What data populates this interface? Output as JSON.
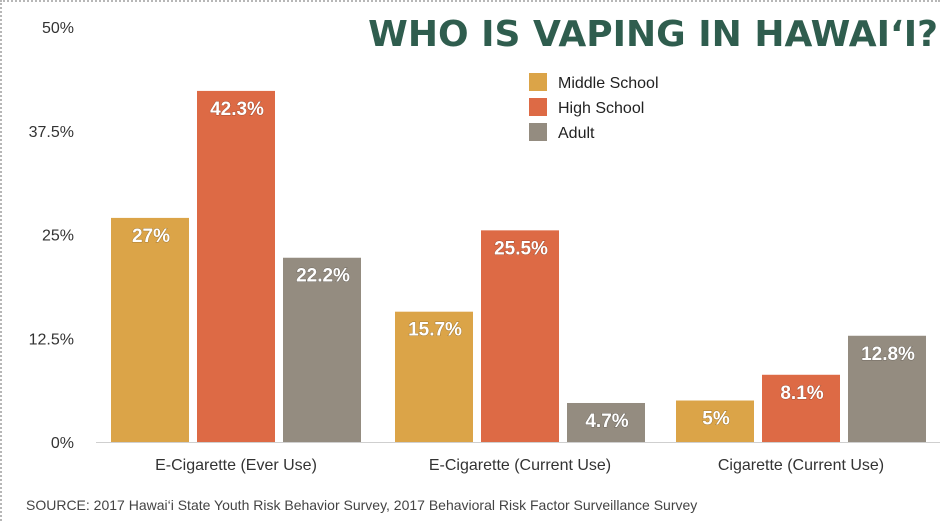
{
  "chart_data": {
    "type": "bar",
    "title": "WHO IS VAPING IN HAWAI‘I?",
    "categories": [
      "E-Cigarette (Ever Use)",
      "E-Cigarette (Current Use)",
      "Cigarette (Current Use)"
    ],
    "series": [
      {
        "name": "Middle School",
        "color": "#dba448",
        "values": [
          27,
          15.7,
          5
        ],
        "labels": [
          "27%",
          "15.7%",
          "5%"
        ]
      },
      {
        "name": "High School",
        "color": "#dd6a45",
        "values": [
          42.3,
          25.5,
          8.1
        ],
        "labels": [
          "42.3%",
          "25.5%",
          "8.1%"
        ]
      },
      {
        "name": "Adult",
        "color": "#948c80",
        "values": [
          22.2,
          4.7,
          12.8
        ],
        "labels": [
          "22.2%",
          "4.7%",
          "12.8%"
        ]
      }
    ],
    "ylim": [
      0,
      50
    ],
    "yticks": [
      0,
      12.5,
      25,
      37.5,
      50
    ],
    "ytick_labels": [
      "0%",
      "12.5%",
      "25%",
      "37.5%",
      "50%"
    ],
    "legend_position": "top-right",
    "grid": false,
    "source": "SOURCE: 2017 Hawai‘i State Youth Risk Behavior Survey, 2017 Behavioral Risk Factor Surveillance Survey"
  }
}
